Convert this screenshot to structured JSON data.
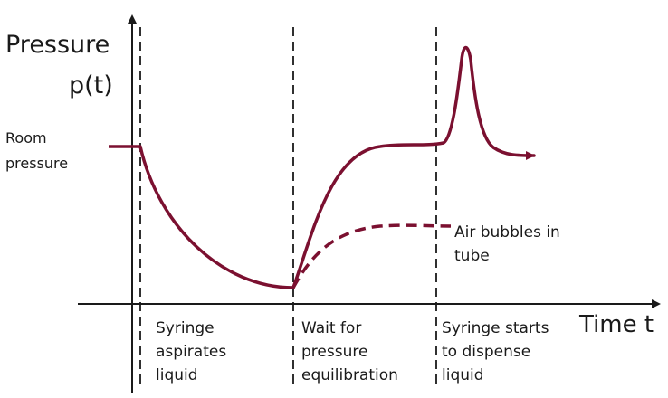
{
  "y_axis": {
    "title_line1": "Pressure",
    "title_line2": "p(t)"
  },
  "x_axis": {
    "title": "Time t"
  },
  "reference_label": {
    "line1": "Room",
    "line2": "pressure"
  },
  "phases": [
    {
      "line1": "Syringe",
      "line2": "aspirates",
      "line3": "liquid"
    },
    {
      "line1": "Wait for",
      "line2": "pressure",
      "line3": "equilibration"
    },
    {
      "line1": "Syringe starts",
      "line2": "to  dispense",
      "line3": "liquid"
    }
  ],
  "annotation": {
    "line1": "Air bubbles in",
    "line2": "tube"
  },
  "colors": {
    "curve": "#7b1030",
    "axis": "#1a1a1a",
    "divider": "#1a1a1a",
    "text": "#1a1a1a"
  }
}
